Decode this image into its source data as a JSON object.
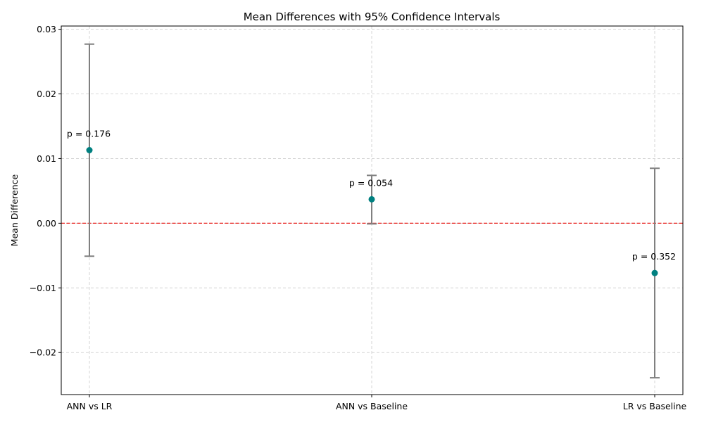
{
  "chart_data": {
    "type": "scatter",
    "title": "Mean Differences with 95% Confidence Intervals",
    "xlabel": "",
    "ylabel": "Mean Difference",
    "categories": [
      "ANN vs LR",
      "ANN vs Baseline",
      "LR vs Baseline"
    ],
    "series": [
      {
        "values": [
          0.0113,
          0.0037,
          -0.0077
        ],
        "ci_lower": [
          -0.0051,
          -0.0001,
          -0.0239
        ],
        "ci_upper": [
          0.0277,
          0.0074,
          0.0085
        ],
        "annotations": [
          "p = 0.176",
          "p = 0.054",
          "p = 0.352"
        ]
      }
    ],
    "ylim": [
      -0.0265,
      0.0305
    ],
    "yticks": [
      -0.02,
      -0.01,
      0.0,
      0.01,
      0.02,
      0.03
    ],
    "ytick_labels": [
      "−0.02",
      "−0.01",
      "0.00",
      "0.01",
      "0.02",
      "0.03"
    ],
    "reference_line": {
      "y": 0.0,
      "style": "dashed"
    },
    "grid": true,
    "legend": "none",
    "colors": {
      "point": "#008080",
      "errorbar": "#808080",
      "reference_line": "#e8201c",
      "grid": "#cccccc"
    }
  }
}
